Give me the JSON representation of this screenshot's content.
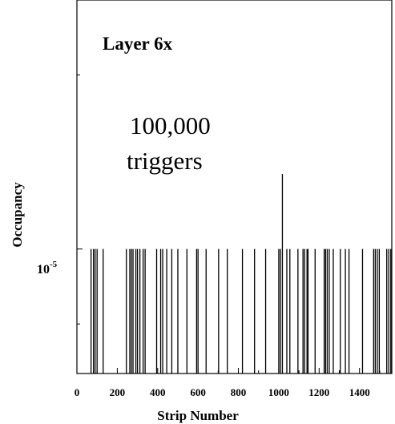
{
  "chart_data": {
    "type": "bar",
    "title": "Layer 6x",
    "annotation_line1": "100,000",
    "annotation_line2": "triggers",
    "xlabel": "Strip Number",
    "ylabel": "Occupancy",
    "ytick_base": "10",
    "ytick_exp": "-5",
    "xlim": [
      0,
      1560
    ],
    "xticks": [
      0,
      200,
      400,
      600,
      800,
      1000,
      1200,
      1400
    ],
    "ylim_log10": [
      -5.5,
      -4.0
    ],
    "y_tick_value": 1e-05,
    "x_strips": [
      70,
      82,
      90,
      100,
      130,
      245,
      262,
      270,
      278,
      292,
      300,
      312,
      328,
      338,
      395,
      415,
      425,
      445,
      470,
      500,
      545,
      593,
      600,
      640,
      702,
      745,
      820,
      880,
      935,
      1000,
      1008,
      1018,
      1040,
      1055,
      1095,
      1120,
      1128,
      1140,
      1145,
      1180,
      1225,
      1232,
      1240,
      1250,
      1270,
      1305,
      1330,
      1348,
      1415,
      1470,
      1478,
      1488,
      1498,
      1535,
      1545,
      1555
    ],
    "y_values": [
      1e-05,
      1e-05,
      1e-05,
      1e-05,
      1e-05,
      1e-05,
      1e-05,
      1e-05,
      1e-05,
      1e-05,
      1e-05,
      1e-05,
      1e-05,
      1e-05,
      1e-05,
      1e-05,
      1e-05,
      1e-05,
      1e-05,
      1e-05,
      1e-05,
      1e-05,
      1e-05,
      1e-05,
      1e-05,
      1e-05,
      1e-05,
      1e-05,
      1e-05,
      1e-05,
      1e-05,
      2e-05,
      1e-05,
      1e-05,
      1e-05,
      1e-05,
      1e-05,
      1e-05,
      1e-05,
      1e-05,
      1e-05,
      1e-05,
      1e-05,
      1e-05,
      1e-05,
      1e-05,
      1e-05,
      1e-05,
      1e-05,
      1e-05,
      1e-05,
      1e-05,
      1e-05,
      1e-05,
      1e-05,
      1e-05
    ],
    "colors": {
      "line": "#000000",
      "background": "#ffffff"
    },
    "grid": false
  }
}
